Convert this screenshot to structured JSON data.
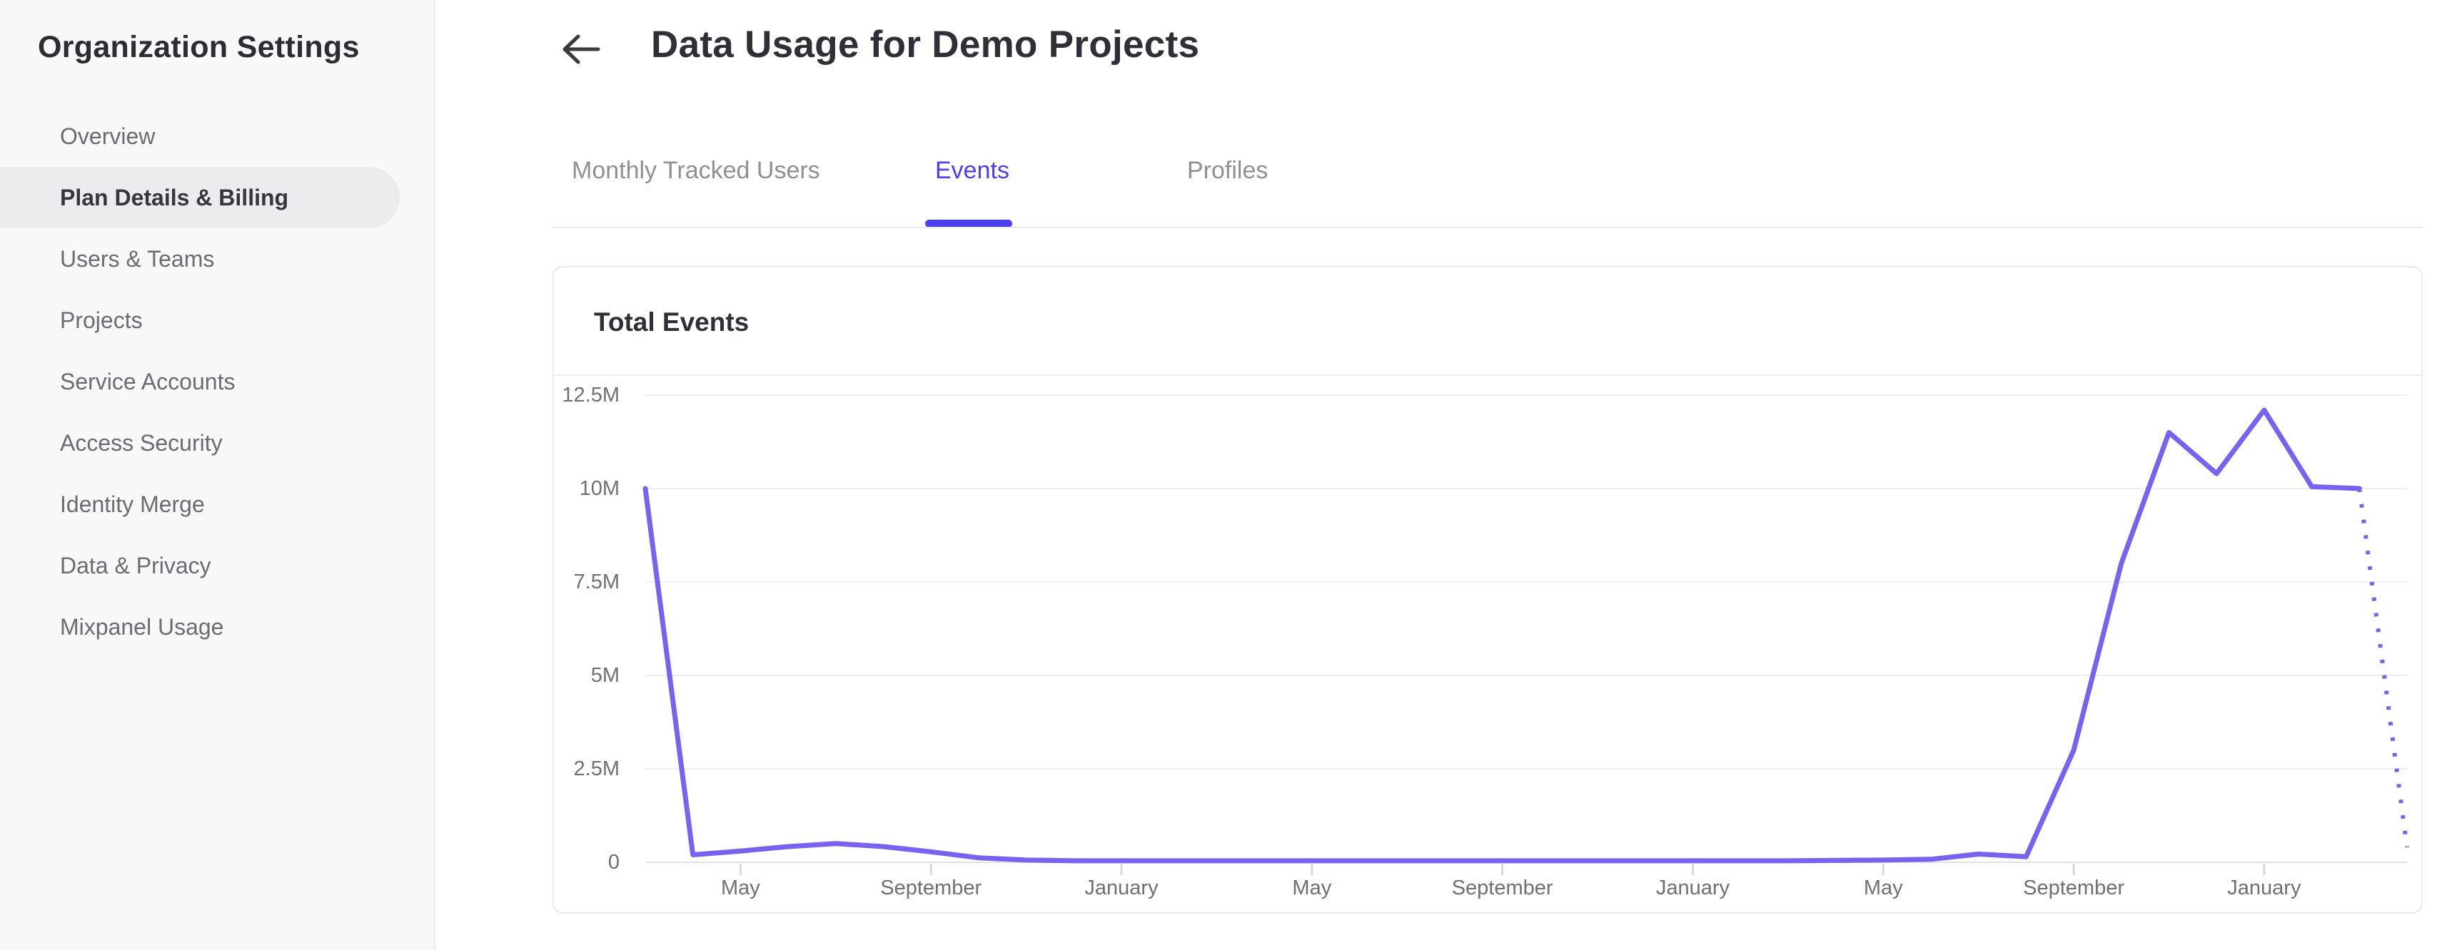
{
  "sidebar": {
    "title": "Organization Settings",
    "items": [
      {
        "label": "Overview",
        "active": false
      },
      {
        "label": "Plan Details & Billing",
        "active": true
      },
      {
        "label": "Users & Teams",
        "active": false
      },
      {
        "label": "Projects",
        "active": false
      },
      {
        "label": "Service Accounts",
        "active": false
      },
      {
        "label": "Access Security",
        "active": false
      },
      {
        "label": "Identity Merge",
        "active": false
      },
      {
        "label": "Data & Privacy",
        "active": false
      },
      {
        "label": "Mixpanel Usage",
        "active": false
      }
    ]
  },
  "header": {
    "title": "Data Usage for Demo Projects",
    "back_icon": "left-arrow-icon"
  },
  "tabs": [
    {
      "label": "Monthly Tracked Users",
      "active": false
    },
    {
      "label": "Events",
      "active": true
    },
    {
      "label": "Profiles",
      "active": false
    }
  ],
  "card": {
    "title": "Total Events"
  },
  "colors": {
    "accent": "#4c3ff0",
    "line": "#7b61f0",
    "grid": "#efeff1",
    "axis_line": "#e3e3e6",
    "tick": "#d9d9dc",
    "muted_text": "#6f6f76",
    "dark_text": "#2f2f37"
  },
  "chart_data": {
    "type": "line",
    "title": "Total Events",
    "unit": "events (millions)",
    "ylim_millions": [
      0,
      12.5
    ],
    "grid": true,
    "legend": "none",
    "series": [
      {
        "name": "Total Events",
        "values_millions": [
          10,
          0.2,
          0.3,
          0.42,
          0.5,
          0.42,
          0.28,
          0.12,
          0.06,
          0.04,
          0.04,
          0.04,
          0.04,
          0.04,
          0.04,
          0.04,
          0.04,
          0.04,
          0.04,
          0.04,
          0.04,
          0.04,
          0.04,
          0.04,
          0.04,
          0.05,
          0.06,
          0.08,
          0.22,
          0.15,
          3.0,
          8.0,
          11.5,
          10.4,
          12.1,
          10.05,
          10.0,
          0.4
        ]
      }
    ],
    "projection": {
      "style": "dotted",
      "from_index": 36
    },
    "y_ticks": [
      {
        "label": "0",
        "value_millions": 0
      },
      {
        "label": "2.5M",
        "value_millions": 2.5
      },
      {
        "label": "5M",
        "value_millions": 5
      },
      {
        "label": "7.5M",
        "value_millions": 7.5
      },
      {
        "label": "10M",
        "value_millions": 10
      },
      {
        "label": "12.5M",
        "value_millions": 12.5
      }
    ],
    "x_ticks": [
      {
        "label": "May",
        "index": 2
      },
      {
        "label": "September",
        "index": 6
      },
      {
        "label": "January",
        "index": 10
      },
      {
        "label": "May",
        "index": 14
      },
      {
        "label": "September",
        "index": 18
      },
      {
        "label": "January",
        "index": 22
      },
      {
        "label": "May",
        "index": 26
      },
      {
        "label": "September",
        "index": 30
      },
      {
        "label": "January",
        "index": 34
      }
    ]
  }
}
